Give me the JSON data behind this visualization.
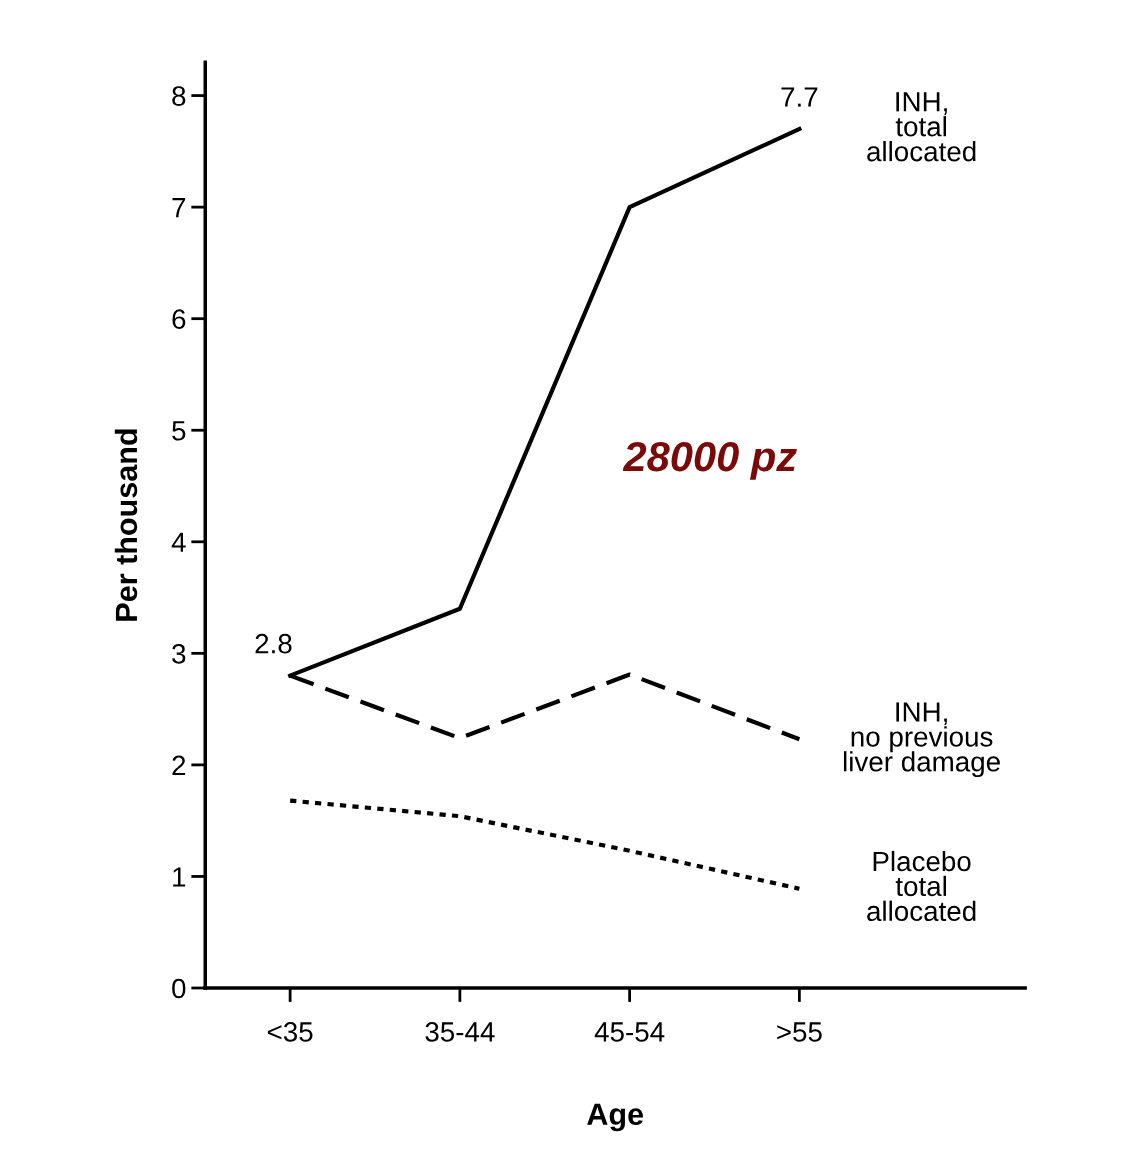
{
  "chart_data": {
    "type": "line",
    "ylabel": "Per thousand",
    "xlabel": "Age",
    "categories": [
      "<35",
      "35-44",
      "45-54",
      ">55"
    ],
    "series": [
      {
        "name": "INH,\ntotal\nallocated",
        "color": "#000000",
        "line_style": "solid",
        "values": [
          2.8,
          3.4,
          7.0,
          7.7
        ],
        "value_labels": [
          "2.8",
          null,
          null,
          "7.7"
        ]
      },
      {
        "name": "INH,\nno previous\nliver damage",
        "color": "#000000",
        "line_style": "dashed",
        "values": [
          2.8,
          2.24,
          2.81,
          2.23
        ]
      },
      {
        "name": "Placebo\ntotal\nallocated",
        "color": "#000000",
        "line_style": "dotted",
        "values": [
          1.68,
          1.54,
          1.23,
          0.89
        ]
      }
    ],
    "ylim": [
      0,
      8.3
    ],
    "yticks": [
      0,
      1,
      2,
      3,
      4,
      5,
      6,
      7,
      8
    ],
    "annotations": [
      "28000 pz"
    ],
    "grid": false,
    "legend": false,
    "marker": "none"
  }
}
